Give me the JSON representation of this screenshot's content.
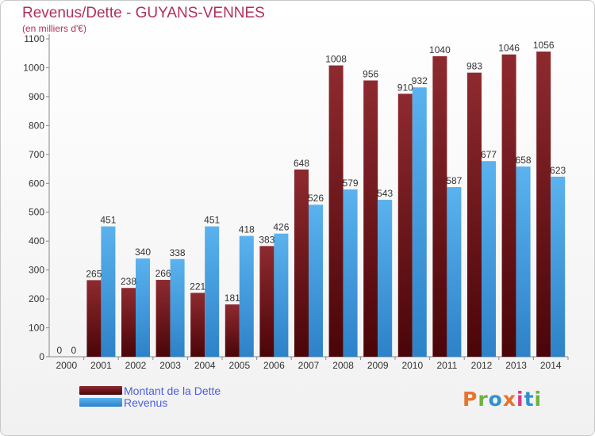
{
  "header": {
    "title": "Revenus/Dette - GUYANS-VENNES",
    "subtitle": "(en milliers d'€)"
  },
  "logo": {
    "text": "Proxiti",
    "colors": [
      "#e8732b",
      "#6db33f",
      "#2f8fd3",
      "#e8732b",
      "#d63a8c",
      "#2f8fd3",
      "#6db33f"
    ]
  },
  "colors": {
    "dette": "#7a1a1f",
    "revenus": "#4ea7e6",
    "title": "#b0305a",
    "legend": "#4a5fe0"
  },
  "chart_data": {
    "type": "bar",
    "categories": [
      "2000",
      "2001",
      "2002",
      "2003",
      "2004",
      "2005",
      "2006",
      "2007",
      "2008",
      "2009",
      "2010",
      "2011",
      "2012",
      "2013",
      "2014"
    ],
    "series": [
      {
        "name": "Montant de la Dette",
        "values": [
          0,
          265,
          238,
          266,
          221,
          181,
          383,
          648,
          1008,
          956,
          910,
          1040,
          983,
          1046,
          1056
        ]
      },
      {
        "name": "Revenus",
        "values": [
          0,
          451,
          340,
          338,
          451,
          418,
          426,
          526,
          579,
          543,
          932,
          587,
          677,
          658,
          623
        ]
      }
    ],
    "yticks": [
      0,
      100,
      200,
      300,
      400,
      500,
      600,
      700,
      800,
      900,
      1000,
      1100
    ],
    "ylim": [
      0,
      1100
    ],
    "grid": false,
    "legend_position": "bottom-left"
  }
}
